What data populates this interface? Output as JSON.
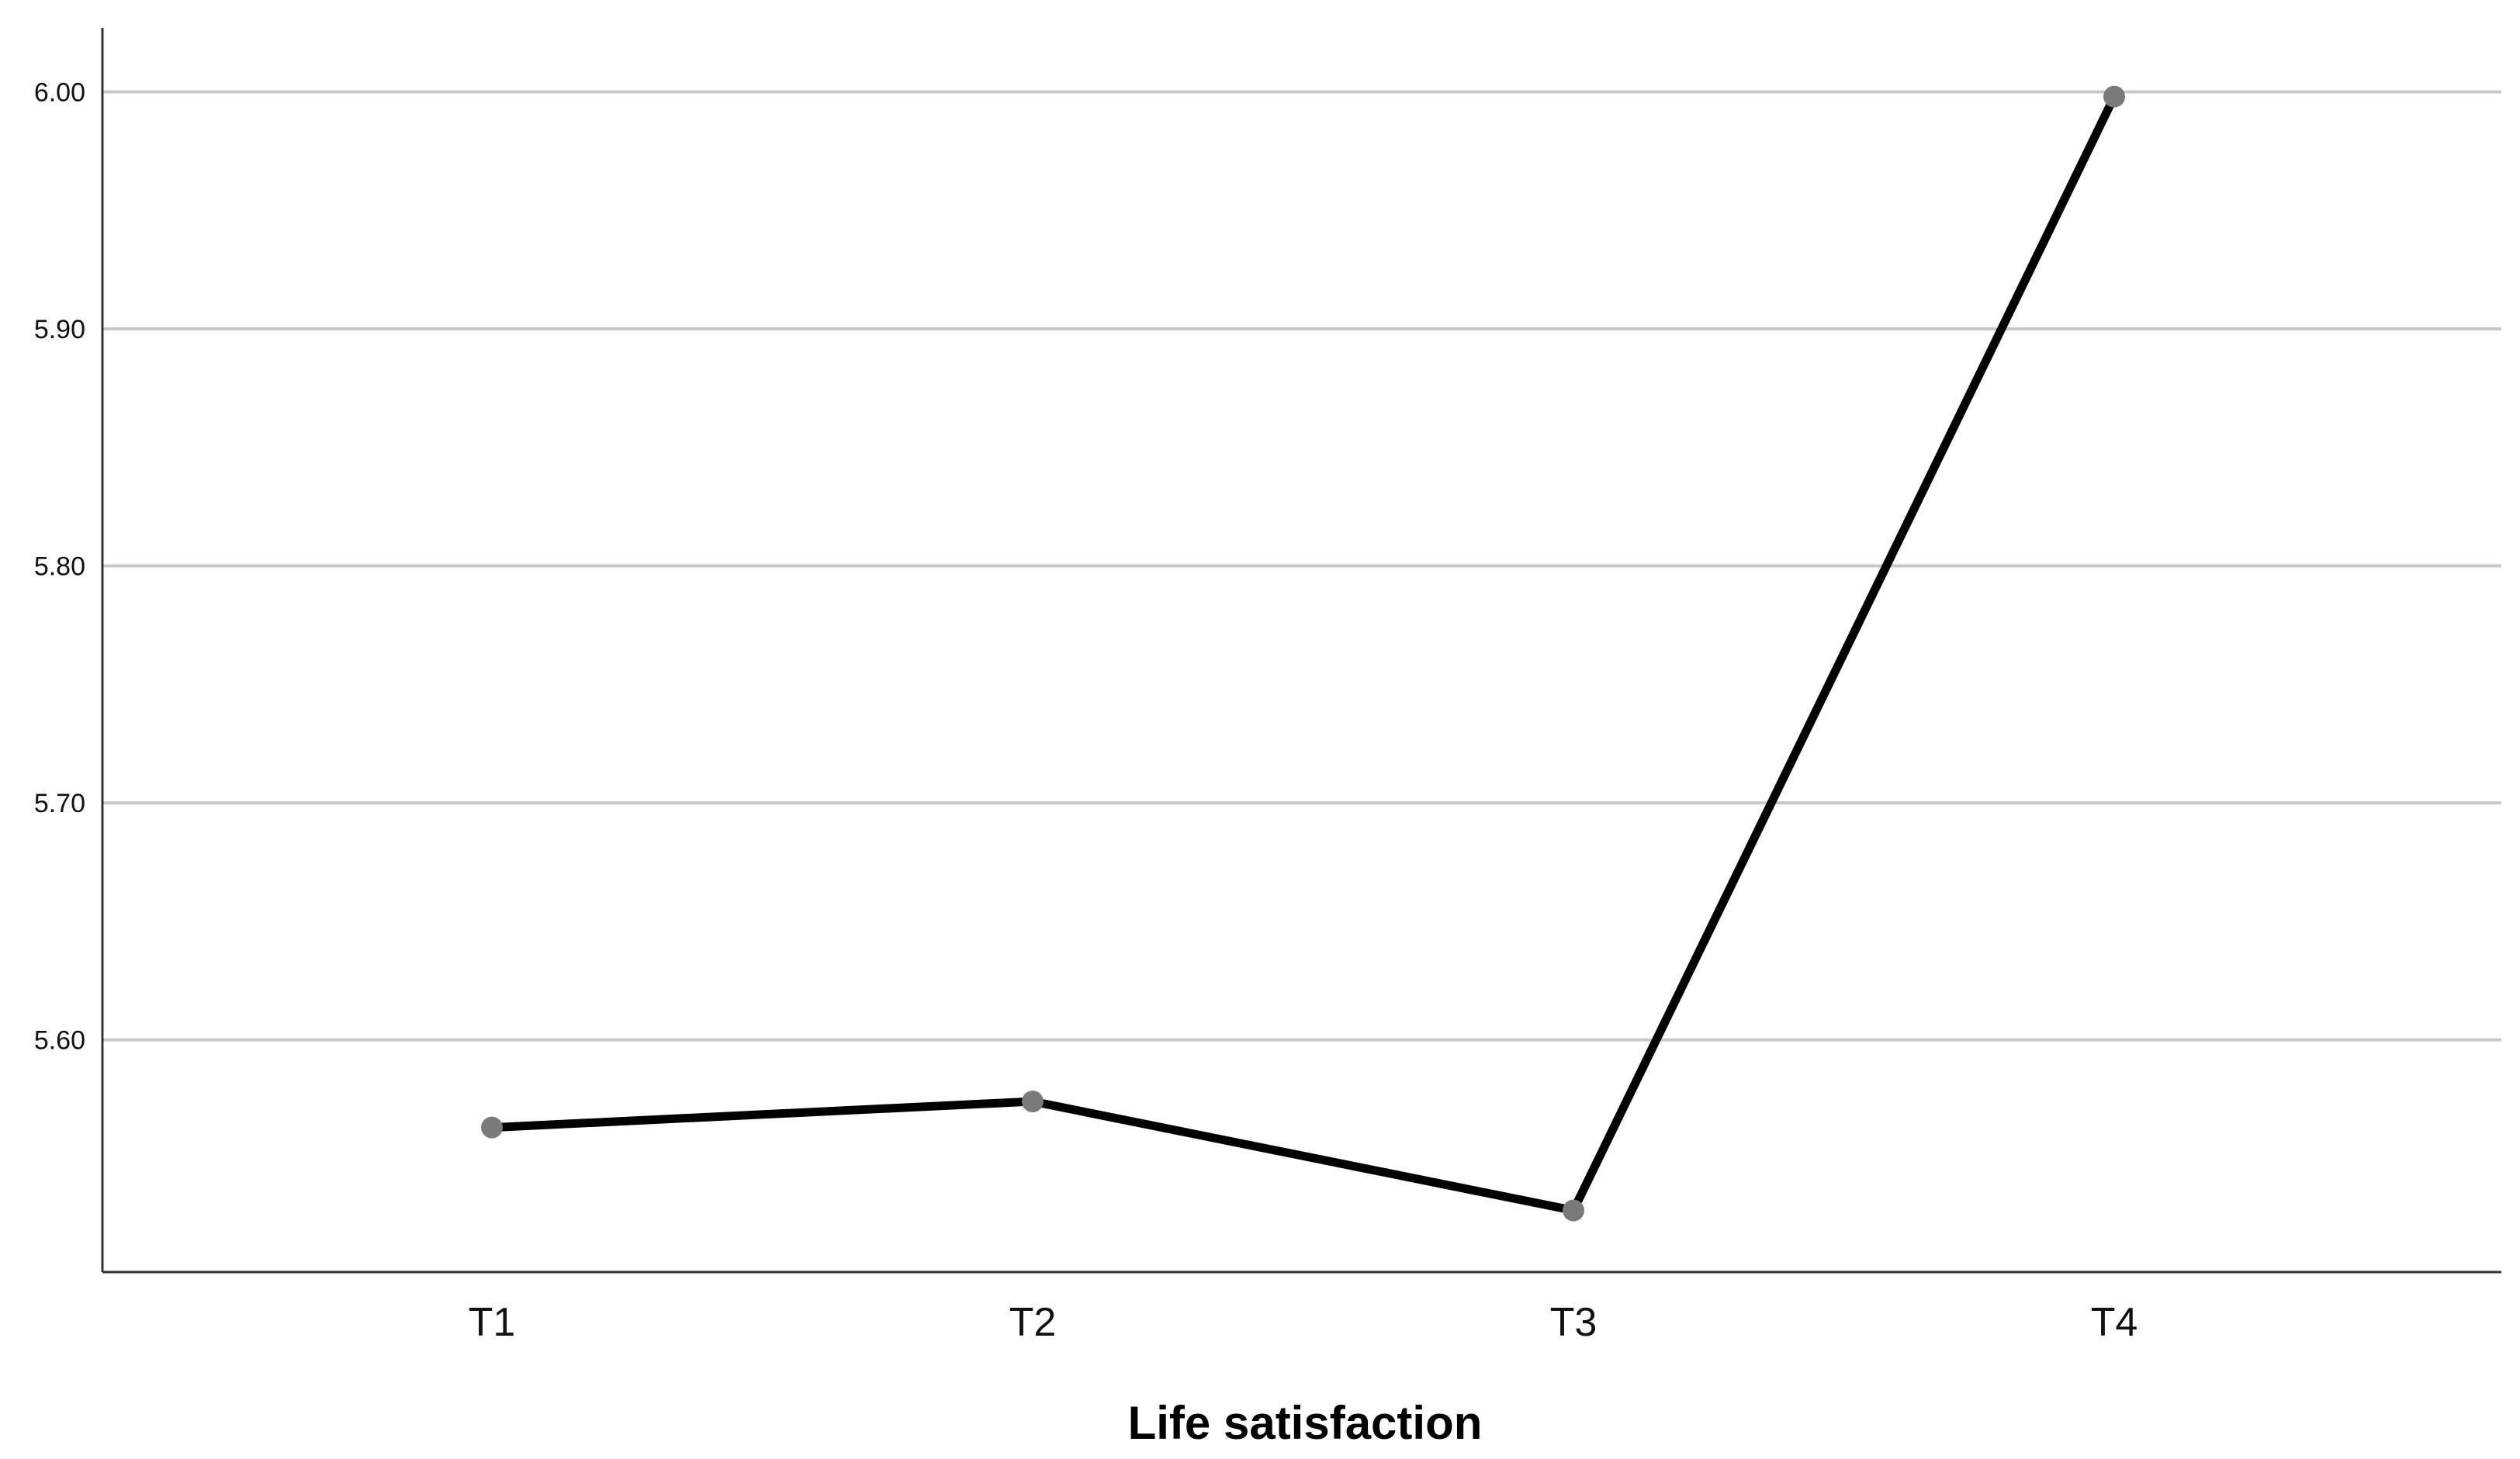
{
  "chart_data": {
    "type": "line",
    "categories": [
      "T1",
      "T2",
      "T3",
      "T4"
    ],
    "series": [
      {
        "values": [
          5.563,
          5.574,
          5.528,
          5.998
        ]
      }
    ],
    "title": "",
    "xlabel": "Life satisfaction",
    "ylabel": "",
    "ylim": [
      5.502,
      6.027
    ],
    "yticks": [
      5.6,
      5.7,
      5.8,
      5.9,
      6.0
    ],
    "ytick_labels": [
      "5.60",
      "5.70",
      "5.80",
      "5.90",
      "6.00"
    ],
    "grid": "horizontal",
    "line_color": "#000000",
    "marker_color": "#7a7a7a",
    "grid_color": "#c8c8c8",
    "axis_color": "#333333"
  }
}
